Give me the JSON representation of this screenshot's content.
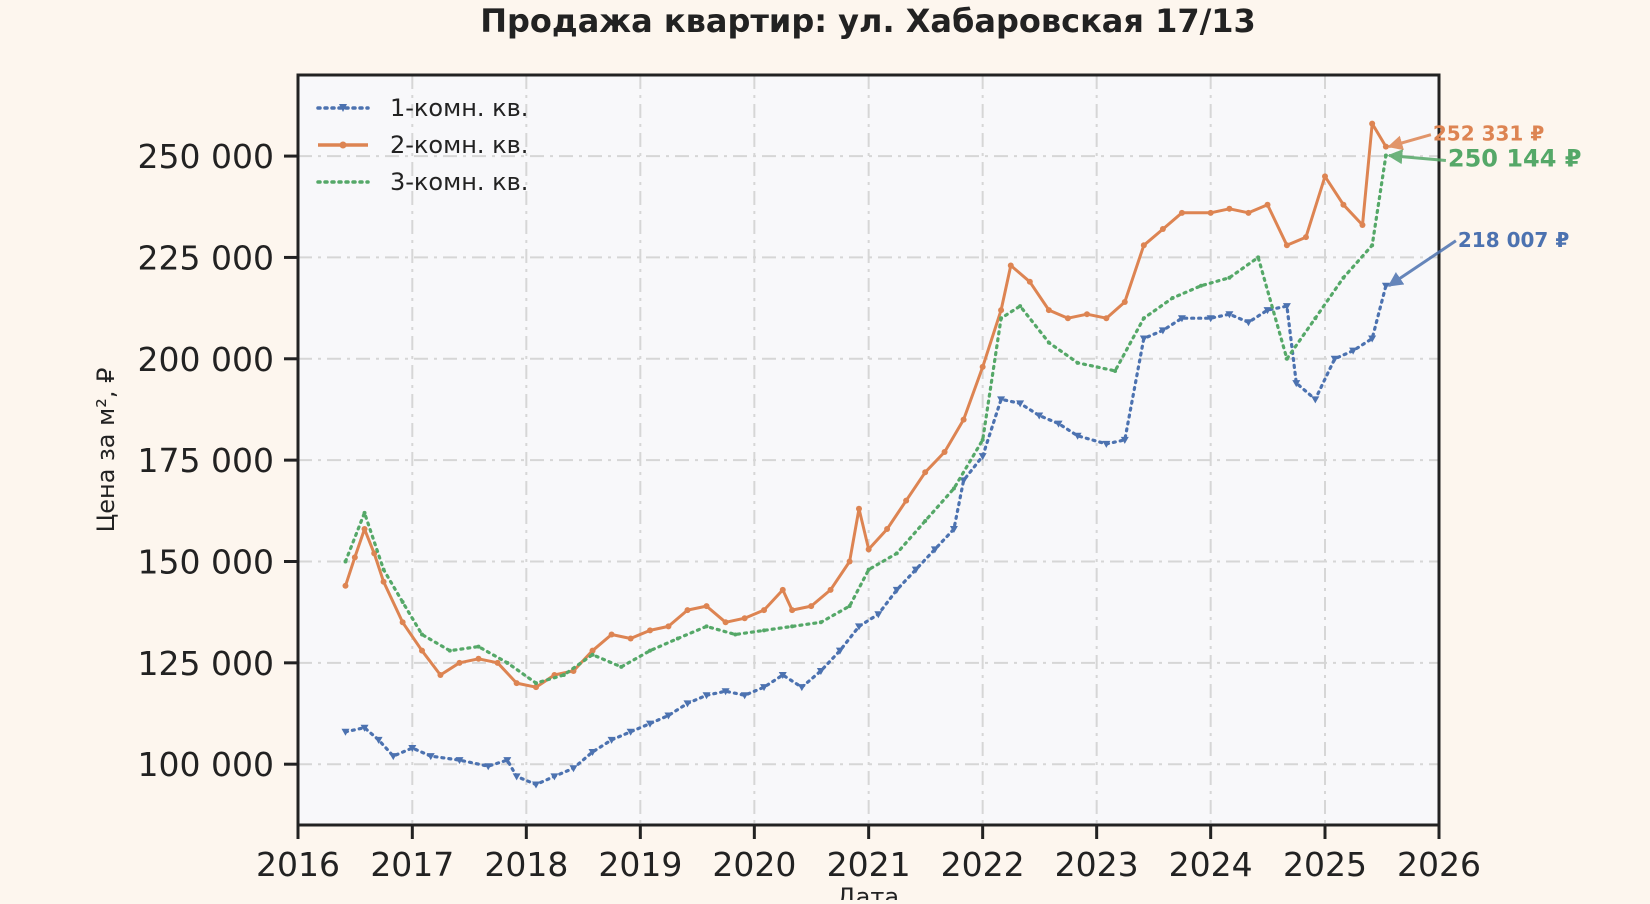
{
  "chart_data": {
    "type": "line",
    "title": "Продажа квартир: ул. Хабаровская 17/13",
    "xlabel": "Дата",
    "ylabel": "Цена за м², ₽",
    "xlim": [
      "2016-01-01",
      "2026-01-01"
    ],
    "ylim": [
      85000,
      270000
    ],
    "x_ticks": [
      "2016",
      "2017",
      "2018",
      "2019",
      "2020",
      "2021",
      "2022",
      "2023",
      "2024",
      "2025",
      "2026"
    ],
    "y_ticks": [
      {
        "value": 100000,
        "label": "100 000"
      },
      {
        "value": 125000,
        "label": "125 000"
      },
      {
        "value": 150000,
        "label": "150 000"
      },
      {
        "value": 175000,
        "label": "175 000"
      },
      {
        "value": 200000,
        "label": "200 000"
      },
      {
        "value": 225000,
        "label": "225 000"
      },
      {
        "value": 250000,
        "label": "250 000"
      }
    ],
    "grid": true,
    "legend_position": "top-left",
    "series": [
      {
        "name": "1-комн. кв.",
        "color": "#4c72b0",
        "style": "dotted-triangle",
        "last_label": "218 007 ₽",
        "points": [
          [
            "2016-06-01",
            108000
          ],
          [
            "2016-08-01",
            109000
          ],
          [
            "2016-09-15",
            106000
          ],
          [
            "2016-11-01",
            102000
          ],
          [
            "2017-01-01",
            104000
          ],
          [
            "2017-03-01",
            102000
          ],
          [
            "2017-06-01",
            101000
          ],
          [
            "2017-09-01",
            99500
          ],
          [
            "2017-11-01",
            101000
          ],
          [
            "2017-12-01",
            97000
          ],
          [
            "2018-02-01",
            95000
          ],
          [
            "2018-04-01",
            97000
          ],
          [
            "2018-06-01",
            99000
          ],
          [
            "2018-08-01",
            103000
          ],
          [
            "2018-10-01",
            106000
          ],
          [
            "2018-12-01",
            108000
          ],
          [
            "2019-02-01",
            110000
          ],
          [
            "2019-04-01",
            112000
          ],
          [
            "2019-06-01",
            115000
          ],
          [
            "2019-08-01",
            117000
          ],
          [
            "2019-10-01",
            118000
          ],
          [
            "2019-12-01",
            117000
          ],
          [
            "2020-02-01",
            119000
          ],
          [
            "2020-04-01",
            122000
          ],
          [
            "2020-06-01",
            119000
          ],
          [
            "2020-08-01",
            123000
          ],
          [
            "2020-10-01",
            128000
          ],
          [
            "2020-12-01",
            134000
          ],
          [
            "2021-02-01",
            137000
          ],
          [
            "2021-04-01",
            143000
          ],
          [
            "2021-06-01",
            148000
          ],
          [
            "2021-08-01",
            153000
          ],
          [
            "2021-10-01",
            158000
          ],
          [
            "2021-11-01",
            170000
          ],
          [
            "2022-01-01",
            176000
          ],
          [
            "2022-03-01",
            190000
          ],
          [
            "2022-05-01",
            189000
          ],
          [
            "2022-07-01",
            186000
          ],
          [
            "2022-09-01",
            184000
          ],
          [
            "2022-11-01",
            181000
          ],
          [
            "2023-02-01",
            179000
          ],
          [
            "2023-04-01",
            180000
          ],
          [
            "2023-06-01",
            205000
          ],
          [
            "2023-08-01",
            207000
          ],
          [
            "2023-10-01",
            210000
          ],
          [
            "2024-01-01",
            210000
          ],
          [
            "2024-03-01",
            211000
          ],
          [
            "2024-05-01",
            209000
          ],
          [
            "2024-07-01",
            212000
          ],
          [
            "2024-09-01",
            213000
          ],
          [
            "2024-10-01",
            194000
          ],
          [
            "2024-12-01",
            190000
          ],
          [
            "2025-02-01",
            200000
          ],
          [
            "2025-04-01",
            202000
          ],
          [
            "2025-06-01",
            205000
          ],
          [
            "2025-07-15",
            218007
          ]
        ]
      },
      {
        "name": "2-комн. кв.",
        "color": "#dd8452",
        "style": "solid-dot",
        "last_label": "252 331 ₽",
        "points": [
          [
            "2016-06-01",
            144000
          ],
          [
            "2016-07-01",
            151000
          ],
          [
            "2016-08-01",
            158000
          ],
          [
            "2016-09-01",
            152000
          ],
          [
            "2016-10-01",
            145000
          ],
          [
            "2016-12-01",
            135000
          ],
          [
            "2017-02-01",
            128000
          ],
          [
            "2017-04-01",
            122000
          ],
          [
            "2017-06-01",
            125000
          ],
          [
            "2017-08-01",
            126000
          ],
          [
            "2017-10-01",
            125000
          ],
          [
            "2017-12-01",
            120000
          ],
          [
            "2018-02-01",
            119000
          ],
          [
            "2018-04-01",
            122000
          ],
          [
            "2018-06-01",
            123000
          ],
          [
            "2018-08-01",
            128000
          ],
          [
            "2018-10-01",
            132000
          ],
          [
            "2018-12-01",
            131000
          ],
          [
            "2019-02-01",
            133000
          ],
          [
            "2019-04-01",
            134000
          ],
          [
            "2019-06-01",
            138000
          ],
          [
            "2019-08-01",
            139000
          ],
          [
            "2019-10-01",
            135000
          ],
          [
            "2019-12-01",
            136000
          ],
          [
            "2020-02-01",
            138000
          ],
          [
            "2020-04-01",
            143000
          ],
          [
            "2020-05-01",
            138000
          ],
          [
            "2020-07-01",
            139000
          ],
          [
            "2020-09-01",
            143000
          ],
          [
            "2020-11-01",
            150000
          ],
          [
            "2020-12-01",
            163000
          ],
          [
            "2021-01-01",
            153000
          ],
          [
            "2021-03-01",
            158000
          ],
          [
            "2021-05-01",
            165000
          ],
          [
            "2021-07-01",
            172000
          ],
          [
            "2021-09-01",
            177000
          ],
          [
            "2021-11-01",
            185000
          ],
          [
            "2022-01-01",
            198000
          ],
          [
            "2022-03-01",
            212000
          ],
          [
            "2022-04-01",
            223000
          ],
          [
            "2022-06-01",
            219000
          ],
          [
            "2022-08-01",
            212000
          ],
          [
            "2022-10-01",
            210000
          ],
          [
            "2022-12-01",
            211000
          ],
          [
            "2023-02-01",
            210000
          ],
          [
            "2023-04-01",
            214000
          ],
          [
            "2023-06-01",
            228000
          ],
          [
            "2023-08-01",
            232000
          ],
          [
            "2023-10-01",
            236000
          ],
          [
            "2024-01-01",
            236000
          ],
          [
            "2024-03-01",
            237000
          ],
          [
            "2024-05-01",
            236000
          ],
          [
            "2024-07-01",
            238000
          ],
          [
            "2024-09-01",
            228000
          ],
          [
            "2024-11-01",
            230000
          ],
          [
            "2025-01-01",
            245000
          ],
          [
            "2025-03-01",
            238000
          ],
          [
            "2025-05-01",
            233000
          ],
          [
            "2025-06-01",
            258000
          ],
          [
            "2025-07-15",
            252331
          ]
        ]
      },
      {
        "name": "3-комн. кв.",
        "color": "#55a868",
        "style": "dotted",
        "last_label": "250 144 ₽",
        "points": [
          [
            "2016-06-01",
            150000
          ],
          [
            "2016-08-01",
            162000
          ],
          [
            "2016-10-01",
            148000
          ],
          [
            "2016-12-01",
            140000
          ],
          [
            "2017-02-01",
            132000
          ],
          [
            "2017-05-01",
            128000
          ],
          [
            "2017-08-01",
            129000
          ],
          [
            "2017-11-01",
            125000
          ],
          [
            "2018-02-01",
            120000
          ],
          [
            "2018-05-01",
            122000
          ],
          [
            "2018-08-01",
            127000
          ],
          [
            "2018-11-01",
            124000
          ],
          [
            "2019-02-01",
            128000
          ],
          [
            "2019-05-01",
            131000
          ],
          [
            "2019-08-01",
            134000
          ],
          [
            "2019-11-01",
            132000
          ],
          [
            "2020-02-01",
            133000
          ],
          [
            "2020-05-01",
            134000
          ],
          [
            "2020-08-01",
            135000
          ],
          [
            "2020-11-01",
            139000
          ],
          [
            "2021-01-01",
            148000
          ],
          [
            "2021-04-01",
            152000
          ],
          [
            "2021-07-01",
            160000
          ],
          [
            "2021-10-01",
            168000
          ],
          [
            "2022-01-01",
            180000
          ],
          [
            "2022-03-01",
            210000
          ],
          [
            "2022-05-01",
            213000
          ],
          [
            "2022-08-01",
            204000
          ],
          [
            "2022-11-01",
            199000
          ],
          [
            "2023-03-01",
            197000
          ],
          [
            "2023-06-01",
            210000
          ],
          [
            "2023-09-01",
            215000
          ],
          [
            "2023-12-01",
            218000
          ],
          [
            "2024-03-01",
            220000
          ],
          [
            "2024-06-01",
            225000
          ],
          [
            "2024-09-01",
            200000
          ],
          [
            "2024-12-01",
            210000
          ],
          [
            "2025-03-01",
            220000
          ],
          [
            "2025-06-01",
            228000
          ],
          [
            "2025-07-15",
            250144
          ]
        ]
      }
    ]
  }
}
